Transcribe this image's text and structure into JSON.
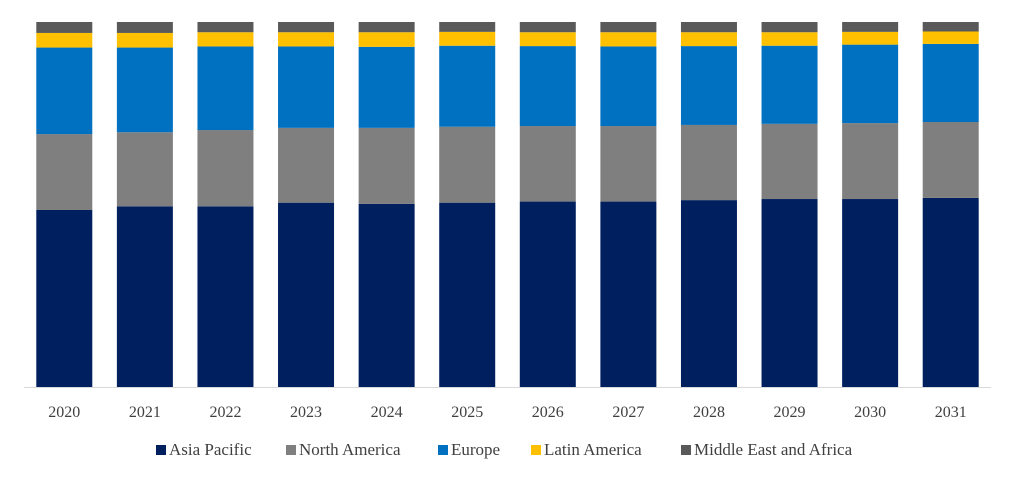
{
  "chart_data": {
    "type": "bar",
    "stacked": true,
    "percent_stacked": true,
    "title": "",
    "xlabel": "",
    "ylabel": "",
    "ylim": [
      0,
      100
    ],
    "grid": false,
    "legend_position": "bottom",
    "categories": [
      "2020",
      "2021",
      "2022",
      "2023",
      "2024",
      "2025",
      "2026",
      "2027",
      "2028",
      "2029",
      "2030",
      "2031"
    ],
    "series": [
      {
        "name": "Asia Pacific",
        "color": "#001f5f",
        "values": [
          48.5,
          49.5,
          49.5,
          50.5,
          50.2,
          50.5,
          50.8,
          50.8,
          51.2,
          51.5,
          51.5,
          51.8
        ]
      },
      {
        "name": "North America",
        "color": "#7f7f7f",
        "values": [
          20.8,
          20.3,
          20.9,
          20.5,
          20.8,
          20.8,
          20.7,
          20.7,
          20.6,
          20.6,
          20.8,
          20.8
        ]
      },
      {
        "name": "Europe",
        "color": "#0070c0",
        "values": [
          23.7,
          23.2,
          22.9,
          22.3,
          22.2,
          22.2,
          21.9,
          21.8,
          21.6,
          21.4,
          21.5,
          21.4
        ]
      },
      {
        "name": "Latin America",
        "color": "#ffc000",
        "values": [
          4.0,
          4.0,
          3.9,
          3.9,
          4.0,
          3.8,
          3.8,
          3.9,
          3.8,
          3.7,
          3.5,
          3.4
        ]
      },
      {
        "name": "Middle East and Africa",
        "color": "#595959",
        "values": [
          3.0,
          3.0,
          2.8,
          2.8,
          2.8,
          2.7,
          2.8,
          2.8,
          2.8,
          2.8,
          2.7,
          2.6
        ]
      }
    ]
  }
}
